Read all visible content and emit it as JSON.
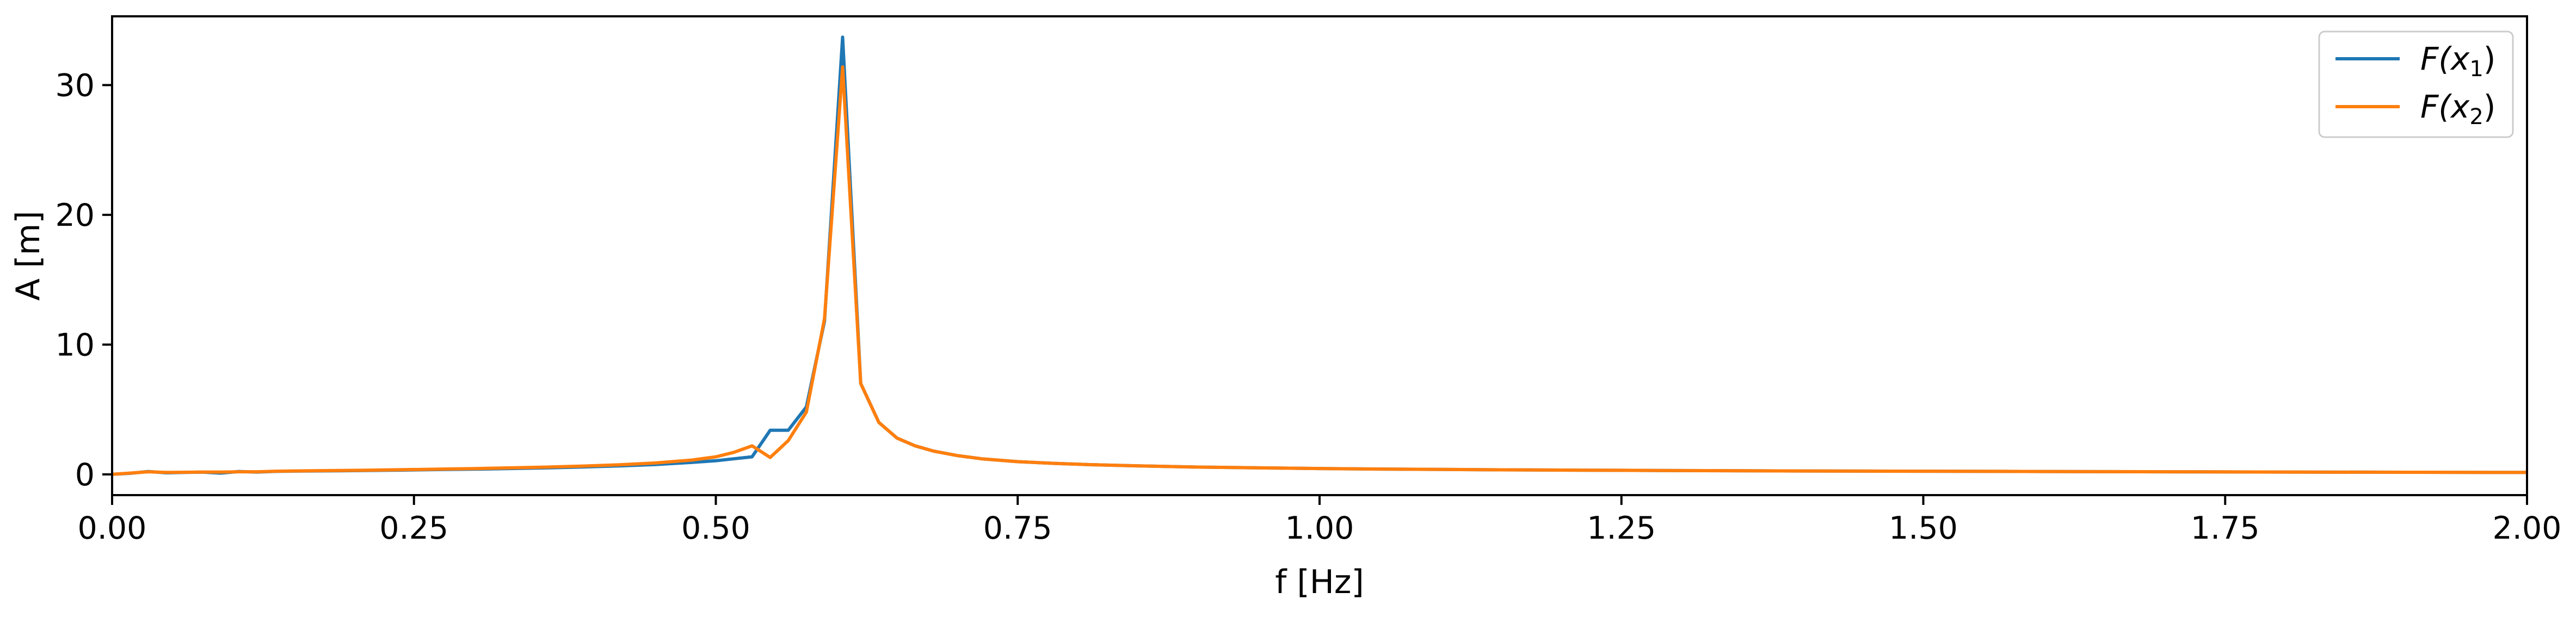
{
  "chart_data": {
    "type": "line",
    "xlabel": "f [Hz]",
    "ylabel": "A [m]",
    "xlim": [
      0,
      2.0
    ],
    "ylim": [
      -1.6,
      35.3
    ],
    "grid": false,
    "legend_position": "top-right",
    "x_ticks": [
      {
        "value": 0.0,
        "label": "0.00"
      },
      {
        "value": 0.25,
        "label": "0.25"
      },
      {
        "value": 0.5,
        "label": "0.50"
      },
      {
        "value": 0.75,
        "label": "0.75"
      },
      {
        "value": 1.0,
        "label": "1.00"
      },
      {
        "value": 1.25,
        "label": "1.25"
      },
      {
        "value": 1.5,
        "label": "1.50"
      },
      {
        "value": 1.75,
        "label": "1.75"
      },
      {
        "value": 2.0,
        "label": "2.00"
      }
    ],
    "y_ticks": [
      {
        "value": 0,
        "label": "0"
      },
      {
        "value": 10,
        "label": "10"
      },
      {
        "value": 20,
        "label": "20"
      },
      {
        "value": 30,
        "label": "30"
      }
    ],
    "series": [
      {
        "legend_main": "F(x",
        "legend_sub": "1",
        "legend_close": ")",
        "color": "#1f77b4",
        "x": [
          0.0,
          0.015,
          0.03,
          0.045,
          0.06,
          0.075,
          0.09,
          0.105,
          0.12,
          0.135,
          0.15,
          0.18,
          0.21,
          0.24,
          0.27,
          0.3,
          0.33,
          0.36,
          0.39,
          0.42,
          0.45,
          0.48,
          0.5,
          0.515,
          0.53,
          0.545,
          0.56,
          0.575,
          0.59,
          0.605,
          0.62,
          0.635,
          0.65,
          0.665,
          0.68,
          0.7,
          0.72,
          0.75,
          0.78,
          0.81,
          0.85,
          0.9,
          0.95,
          1.0,
          1.05,
          1.1,
          1.15,
          1.2,
          1.25,
          1.3,
          1.4,
          1.5,
          1.6,
          1.7,
          1.8,
          1.9,
          2.0
        ],
        "y": [
          0.0,
          0.08,
          0.22,
          0.12,
          0.15,
          0.17,
          0.1,
          0.22,
          0.18,
          0.23,
          0.25,
          0.27,
          0.3,
          0.33,
          0.37,
          0.4,
          0.45,
          0.5,
          0.57,
          0.65,
          0.76,
          0.92,
          1.05,
          1.2,
          1.35,
          3.4,
          3.4,
          5.2,
          11.8,
          33.7,
          7.0,
          4.0,
          2.8,
          2.2,
          1.8,
          1.45,
          1.2,
          0.98,
          0.85,
          0.75,
          0.65,
          0.56,
          0.5,
          0.45,
          0.41,
          0.38,
          0.35,
          0.33,
          0.31,
          0.29,
          0.26,
          0.24,
          0.22,
          0.2,
          0.18,
          0.16,
          0.15
        ]
      },
      {
        "legend_main": "F(x",
        "legend_sub": "2",
        "legend_close": ")",
        "color": "#ff7f0e",
        "x": [
          0.0,
          0.015,
          0.03,
          0.045,
          0.06,
          0.075,
          0.09,
          0.105,
          0.12,
          0.135,
          0.15,
          0.18,
          0.21,
          0.24,
          0.27,
          0.3,
          0.33,
          0.36,
          0.39,
          0.42,
          0.45,
          0.48,
          0.5,
          0.515,
          0.53,
          0.545,
          0.56,
          0.575,
          0.59,
          0.605,
          0.62,
          0.635,
          0.65,
          0.665,
          0.68,
          0.7,
          0.72,
          0.75,
          0.78,
          0.81,
          0.85,
          0.9,
          0.95,
          1.0,
          1.05,
          1.1,
          1.15,
          1.2,
          1.25,
          1.3,
          1.4,
          1.5,
          1.6,
          1.7,
          1.8,
          1.9,
          2.0
        ],
        "y": [
          0.0,
          0.1,
          0.2,
          0.15,
          0.16,
          0.18,
          0.18,
          0.2,
          0.2,
          0.24,
          0.26,
          0.29,
          0.32,
          0.36,
          0.4,
          0.44,
          0.5,
          0.56,
          0.64,
          0.74,
          0.88,
          1.1,
          1.35,
          1.7,
          2.2,
          1.3,
          2.6,
          4.8,
          12.0,
          31.4,
          7.0,
          4.0,
          2.8,
          2.2,
          1.8,
          1.45,
          1.2,
          0.98,
          0.85,
          0.75,
          0.65,
          0.56,
          0.5,
          0.45,
          0.41,
          0.38,
          0.35,
          0.33,
          0.31,
          0.29,
          0.26,
          0.24,
          0.22,
          0.2,
          0.18,
          0.16,
          0.15
        ]
      }
    ]
  }
}
